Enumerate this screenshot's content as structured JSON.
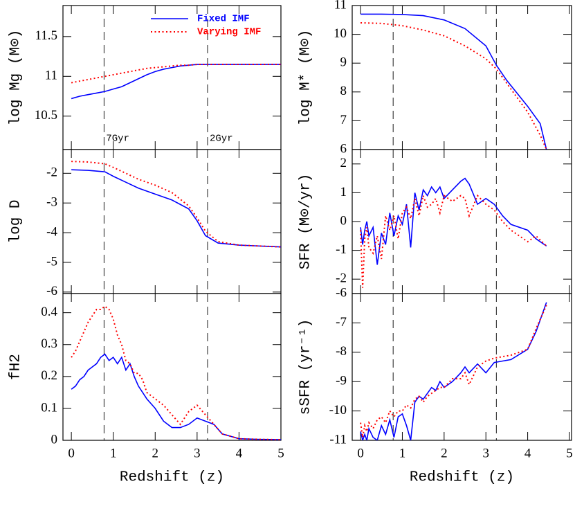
{
  "chart_data": [
    {
      "type": "line",
      "ylabel": "log Mg (M⊙)",
      "xlim": [
        -0.2,
        5
      ],
      "ylim": [
        10.08,
        11.89
      ],
      "xticks": [
        0,
        1,
        2,
        3,
        4,
        5
      ],
      "yticks": [
        10.5,
        11,
        11.5
      ],
      "vlines": [
        0.78,
        3.25
      ],
      "annotations": [
        {
          "text": "7Gyr",
          "x": 0.78
        },
        {
          "text": "2Gyr",
          "x": 3.25
        }
      ],
      "legend": "upper right",
      "x": [
        0,
        0.2,
        0.4,
        0.6,
        0.8,
        1,
        1.2,
        1.4,
        1.6,
        1.8,
        2,
        2.2,
        2.4,
        2.6,
        2.8,
        3,
        3.2,
        3.5,
        4,
        4.5,
        5
      ],
      "series": [
        {
          "name": "Fixed IMF",
          "color": "#0000ff",
          "style": "solid",
          "values": [
            10.72,
            10.75,
            10.77,
            10.79,
            10.81,
            10.84,
            10.87,
            10.92,
            10.97,
            11.02,
            11.06,
            11.09,
            11.11,
            11.13,
            11.14,
            11.15,
            11.15,
            11.15,
            11.15,
            11.15,
            11.15
          ]
        },
        {
          "name": "Varying IMF",
          "color": "#ff0000",
          "style": "dotted",
          "values": [
            10.92,
            10.94,
            10.96,
            10.98,
            11.0,
            11.02,
            11.04,
            11.06,
            11.08,
            11.1,
            11.11,
            11.12,
            11.13,
            11.14,
            11.14,
            11.15,
            11.15,
            11.15,
            11.15,
            11.15,
            11.15
          ]
        }
      ]
    },
    {
      "type": "line",
      "ylabel": "log M* (M⊙)",
      "xlim": [
        -0.2,
        5.05
      ],
      "ylim": [
        6,
        11
      ],
      "xticks": [
        0,
        1,
        2,
        3,
        4,
        5
      ],
      "yticks": [
        6,
        7,
        8,
        9,
        10,
        11
      ],
      "vlines": [
        0.78,
        3.25
      ],
      "x": [
        0,
        0.5,
        1,
        1.5,
        2,
        2.5,
        3,
        3.25,
        3.5,
        4,
        4.3,
        4.45
      ],
      "series": [
        {
          "name": "Fixed IMF",
          "color": "#0000ff",
          "style": "solid",
          "values": [
            10.7,
            10.7,
            10.69,
            10.65,
            10.5,
            10.2,
            9.6,
            8.93,
            8.4,
            7.5,
            6.9,
            6.0
          ]
        },
        {
          "name": "Varying IMF",
          "color": "#ff0000",
          "style": "dotted",
          "values": [
            10.4,
            10.38,
            10.3,
            10.15,
            9.95,
            9.6,
            9.15,
            8.8,
            8.3,
            7.3,
            6.5,
            6.0
          ]
        }
      ]
    },
    {
      "type": "line",
      "ylabel": "log D",
      "xlim": [
        -0.2,
        5
      ],
      "ylim": [
        -6.05,
        -1.2
      ],
      "xticks": [
        0,
        1,
        2,
        3,
        4,
        5
      ],
      "yticks": [
        -2,
        -3,
        -4,
        -5,
        -6
      ],
      "vlines": [
        0.78,
        3.25
      ],
      "x": [
        0,
        0.4,
        0.8,
        1,
        1.3,
        1.6,
        2,
        2.4,
        2.8,
        3,
        3.2,
        3.5,
        4,
        4.5,
        5
      ],
      "series": [
        {
          "name": "Fixed IMF",
          "color": "#0000ff",
          "style": "solid",
          "values": [
            -1.88,
            -1.9,
            -1.95,
            -2.1,
            -2.3,
            -2.5,
            -2.7,
            -2.9,
            -3.2,
            -3.6,
            -4.1,
            -4.35,
            -4.42,
            -4.45,
            -4.48
          ]
        },
        {
          "name": "Varying IMF",
          "color": "#ff0000",
          "style": "dotted",
          "values": [
            -1.6,
            -1.62,
            -1.68,
            -1.8,
            -2.0,
            -2.2,
            -2.4,
            -2.65,
            -3.1,
            -3.5,
            -3.95,
            -4.3,
            -4.42,
            -4.45,
            -4.48
          ]
        }
      ]
    },
    {
      "type": "line",
      "ylabel": "SFR (M⊙/yr)",
      "xlim": [
        -0.2,
        5.05
      ],
      "ylim": [
        -2.5,
        2.5
      ],
      "xticks": [
        0,
        1,
        2,
        3,
        4,
        5
      ],
      "yticks": [
        -2,
        -1,
        0,
        1,
        2
      ],
      "vlines": [
        0.78,
        3.25
      ],
      "x": [
        0,
        0.05,
        0.1,
        0.15,
        0.2,
        0.3,
        0.4,
        0.5,
        0.6,
        0.7,
        0.8,
        0.9,
        1,
        1.1,
        1.2,
        1.3,
        1.4,
        1.5,
        1.6,
        1.7,
        1.8,
        1.9,
        2,
        2.2,
        2.4,
        2.5,
        2.6,
        2.8,
        3,
        3.2,
        3.4,
        3.6,
        4,
        4.2,
        4.45
      ],
      "series": [
        {
          "name": "Fixed IMF",
          "color": "#0000ff",
          "style": "solid",
          "values": [
            -0.2,
            -0.8,
            -0.3,
            0,
            -0.5,
            -0.2,
            -1.5,
            -0.4,
            -0.8,
            0.3,
            -0.5,
            0.2,
            -0.1,
            0.6,
            -0.9,
            1.0,
            0.4,
            1.1,
            0.9,
            1.2,
            1.0,
            1.2,
            0.8,
            1.1,
            1.4,
            1.5,
            1.3,
            0.6,
            0.8,
            0.6,
            0.2,
            -0.1,
            -0.3,
            -0.6,
            -0.85
          ]
        },
        {
          "name": "Varying IMF",
          "color": "#ff0000",
          "style": "dotted",
          "values": [
            -0.3,
            -2.3,
            -0.6,
            -0.2,
            -0.9,
            -1.1,
            -0.5,
            -1.3,
            0.2,
            -0.3,
            0.2,
            -0.6,
            0.3,
            0.5,
            0.1,
            0.8,
            0.2,
            0.9,
            0.5,
            0.6,
            0.8,
            0.3,
            0.9,
            0.7,
            0.9,
            0.8,
            0.2,
            0.9,
            0.6,
            0.4,
            0.0,
            -0.3,
            -0.7,
            -0.5,
            -0.85
          ]
        }
      ]
    },
    {
      "type": "line",
      "ylabel": "fH2",
      "xlabel": "Redshift (z)",
      "xlim": [
        -0.2,
        5
      ],
      "ylim": [
        0,
        0.46
      ],
      "xticks": [
        0,
        1,
        2,
        3,
        4,
        5
      ],
      "yticks": [
        0,
        0.1,
        0.2,
        0.3,
        0.4
      ],
      "vlines": [
        0.78,
        3.25
      ],
      "x": [
        0,
        0.1,
        0.2,
        0.3,
        0.4,
        0.5,
        0.6,
        0.7,
        0.8,
        0.9,
        1,
        1.1,
        1.2,
        1.3,
        1.4,
        1.5,
        1.6,
        1.7,
        1.8,
        2,
        2.2,
        2.4,
        2.6,
        2.8,
        3,
        3.2,
        3.4,
        3.6,
        4,
        4.5,
        5
      ],
      "series": [
        {
          "name": "Fixed IMF",
          "color": "#0000ff",
          "style": "solid",
          "values": [
            0.16,
            0.17,
            0.19,
            0.2,
            0.22,
            0.23,
            0.24,
            0.26,
            0.27,
            0.25,
            0.26,
            0.24,
            0.26,
            0.22,
            0.24,
            0.2,
            0.17,
            0.15,
            0.13,
            0.1,
            0.06,
            0.04,
            0.04,
            0.05,
            0.07,
            0.06,
            0.05,
            0.02,
            0.005,
            0.003,
            0.002
          ]
        },
        {
          "name": "Varying IMF",
          "color": "#ff0000",
          "style": "dotted",
          "values": [
            0.26,
            0.28,
            0.31,
            0.34,
            0.37,
            0.39,
            0.41,
            0.41,
            0.42,
            0.41,
            0.38,
            0.33,
            0.3,
            0.25,
            0.24,
            0.21,
            0.21,
            0.19,
            0.15,
            0.13,
            0.11,
            0.08,
            0.05,
            0.09,
            0.11,
            0.08,
            0.05,
            0.02,
            0.005,
            0.003,
            0.002
          ]
        }
      ]
    },
    {
      "type": "line",
      "ylabel": "sSFR (yr⁻¹)",
      "xlabel": "Redshift (z)",
      "xlim": [
        -0.2,
        5.05
      ],
      "ylim": [
        -11,
        -6
      ],
      "xticks": [
        0,
        1,
        2,
        3,
        4,
        5
      ],
      "yticks": [
        -6,
        -7,
        -8,
        -9,
        -10,
        -11
      ],
      "vlines": [
        0.78,
        3.25
      ],
      "x": [
        0,
        0.05,
        0.1,
        0.15,
        0.2,
        0.3,
        0.4,
        0.5,
        0.6,
        0.7,
        0.8,
        0.9,
        1,
        1.1,
        1.2,
        1.3,
        1.4,
        1.5,
        1.6,
        1.7,
        1.8,
        1.9,
        2,
        2.2,
        2.4,
        2.5,
        2.6,
        2.8,
        3,
        3.2,
        3.4,
        3.6,
        4,
        4.2,
        4.45
      ],
      "series": [
        {
          "name": "Fixed IMF",
          "color": "#0000ff",
          "style": "solid",
          "values": [
            -10.7,
            -11,
            -10.8,
            -11,
            -10.6,
            -10.9,
            -11,
            -10.5,
            -10.8,
            -10.3,
            -10.9,
            -10.2,
            -10.1,
            -10.5,
            -11,
            -9.7,
            -9.5,
            -9.6,
            -9.4,
            -9.2,
            -9.3,
            -9.0,
            -9.2,
            -9.0,
            -8.7,
            -8.5,
            -8.7,
            -8.4,
            -8.7,
            -8.35,
            -8.3,
            -8.25,
            -7.9,
            -7.3,
            -6.3
          ]
        },
        {
          "name": "Varying IMF",
          "color": "#ff0000",
          "style": "dotted",
          "values": [
            -10.4,
            -10.9,
            -10.5,
            -10.7,
            -10.4,
            -10.6,
            -10.3,
            -10.2,
            -10.4,
            -10.0,
            -10.2,
            -10.0,
            -10.0,
            -9.8,
            -9.9,
            -9.6,
            -9.5,
            -9.7,
            -9.5,
            -9.4,
            -9.3,
            -9.2,
            -9.2,
            -8.9,
            -8.9,
            -8.7,
            -9.1,
            -8.5,
            -8.3,
            -8.2,
            -8.15,
            -8.1,
            -7.9,
            -7.2,
            -6.4
          ]
        }
      ]
    }
  ]
}
